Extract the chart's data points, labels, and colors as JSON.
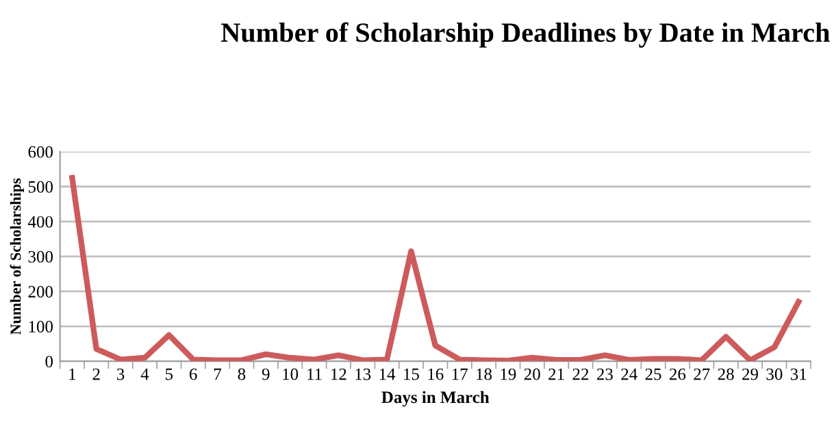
{
  "chart_data": {
    "type": "line",
    "title": "Number of Scholarship Deadlines by Date in March",
    "xlabel": "Days in March",
    "ylabel": "Number of Scholarships",
    "categories": [
      "1",
      "2",
      "3",
      "4",
      "5",
      "6",
      "7",
      "8",
      "9",
      "10",
      "11",
      "12",
      "13",
      "14",
      "15",
      "16",
      "17",
      "18",
      "19",
      "20",
      "21",
      "22",
      "23",
      "24",
      "25",
      "26",
      "27",
      "28",
      "29",
      "30",
      "31"
    ],
    "series": [
      {
        "color": "#cd5b5b",
        "values": [
          525,
          35,
          5,
          10,
          75,
          5,
          3,
          3,
          20,
          10,
          5,
          17,
          3,
          5,
          315,
          45,
          5,
          3,
          2,
          10,
          4,
          4,
          17,
          4,
          7,
          7,
          3,
          70,
          3,
          40,
          170
        ]
      }
    ],
    "ylim": [
      0,
      600
    ],
    "yticks": [
      0,
      100,
      200,
      300,
      400,
      500,
      600
    ],
    "grid": "y",
    "legend": false,
    "marker": "none",
    "line_style": "solid"
  }
}
